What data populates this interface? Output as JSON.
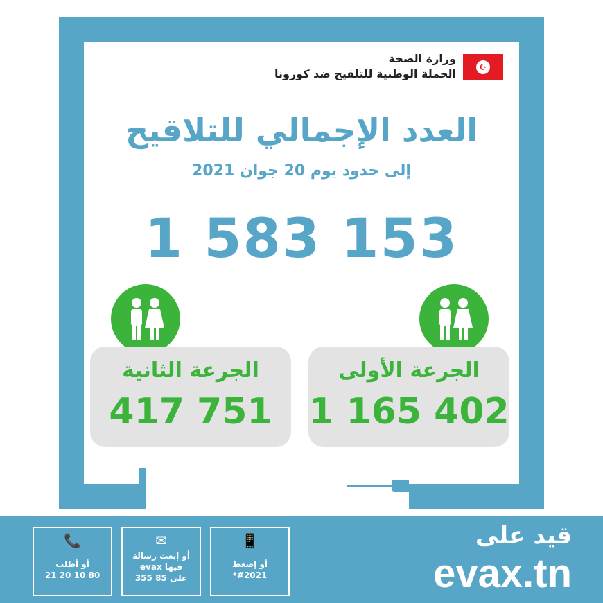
{
  "header": {
    "ministry": "وزارة الصحة",
    "campaign": "الحملة الوطنية للتلقيح ضد كورونا",
    "flag_icon": "tunisia-flag"
  },
  "title": "العدد الإجمالي للتلاقيح",
  "subtitle": "إلى حدود يوم 20 جوان 2021",
  "total": "1 583 153",
  "doses": [
    {
      "label": "الجرعة الأولى",
      "value": "1 165 402"
    },
    {
      "label": "الجرعة الثانية",
      "value": "417 751"
    }
  ],
  "footer": {
    "register_label": "قيد على",
    "site": "evax.tn",
    "cards": [
      {
        "icon": "smartphone-icon",
        "lines": [
          "أو إضغط",
          "#2021*"
        ]
      },
      {
        "icon": "envelope-icon",
        "lines": [
          "أو إبعث رسالة",
          "فيها evax",
          "على 85 355"
        ]
      },
      {
        "icon": "phone-icon",
        "lines": [
          "أو أطلب",
          "80 10 20 21"
        ]
      }
    ]
  },
  "colors": {
    "blue": "#57a5c7",
    "green": "#3cb43c",
    "gray": "#e3e3e3",
    "red": "#e31b23"
  }
}
